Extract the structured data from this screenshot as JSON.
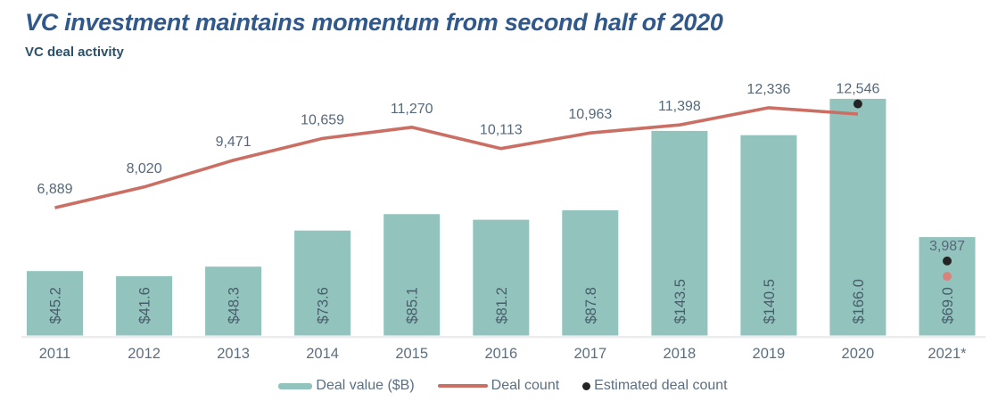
{
  "header": {
    "title": "VC investment maintains momentum from second half of 2020",
    "subtitle": "VC deal activity"
  },
  "colors": {
    "bar": "#92c3bd",
    "line": "#cb6e64",
    "estimated_dot": "#242424",
    "partial_dot": "#d8837b",
    "axis_line": "#ececec"
  },
  "chart_data": {
    "type": "combo",
    "title": "VC investment maintains momentum from second half of 2020",
    "subtitle": "VC deal activity",
    "categories": [
      "2011",
      "2012",
      "2013",
      "2014",
      "2015",
      "2016",
      "2017",
      "2018",
      "2019",
      "2020",
      "2021*"
    ],
    "value_axis": {
      "unit": "billions USD",
      "visible": false,
      "range": [
        0,
        170
      ]
    },
    "count_axis": {
      "unit": "deals",
      "visible": false,
      "range": [
        0,
        13000
      ]
    },
    "grid": "off",
    "legend_position": "bottom-center",
    "series": [
      {
        "name": "Deal value ($B)",
        "type": "bar",
        "values": [
          45.2,
          41.6,
          48.3,
          73.6,
          85.1,
          81.2,
          87.8,
          143.5,
          140.5,
          166.0,
          69.0
        ],
        "labels": [
          "$45.2",
          "$41.6",
          "$48.3",
          "$73.6",
          "$85.1",
          "$81.2",
          "$87.8",
          "$143.5",
          "$140.5",
          "$166.0",
          "$69.0"
        ]
      },
      {
        "name": "Deal count",
        "type": "line",
        "categories": [
          "2011",
          "2012",
          "2013",
          "2014",
          "2015",
          "2016",
          "2017",
          "2018",
          "2019",
          "2020"
        ],
        "values": [
          6889,
          8020,
          9471,
          10659,
          11270,
          10113,
          10963,
          11398,
          12336,
          11990
        ],
        "labels": [
          "6,889",
          "8,020",
          "9,471",
          "10,659",
          "11,270",
          "10,113",
          "10,963",
          "11,398",
          "12,336"
        ]
      },
      {
        "name": "Estimated deal count",
        "type": "scatter",
        "points": [
          {
            "category": "2020",
            "value": 12546,
            "label": "12,546"
          },
          {
            "category": "2021*",
            "value": 3987,
            "label": "3,987"
          }
        ]
      },
      {
        "name": "Deal count partial 2021 (unlabeled dot)",
        "type": "scatter",
        "points": [
          {
            "category": "2021*",
            "value": 3150,
            "label": ""
          }
        ]
      }
    ],
    "legend": [
      {
        "label": "Deal value ($B)",
        "marker": "bar"
      },
      {
        "label": "Deal count",
        "marker": "line"
      },
      {
        "label": "Estimated deal count",
        "marker": "dot"
      }
    ]
  }
}
